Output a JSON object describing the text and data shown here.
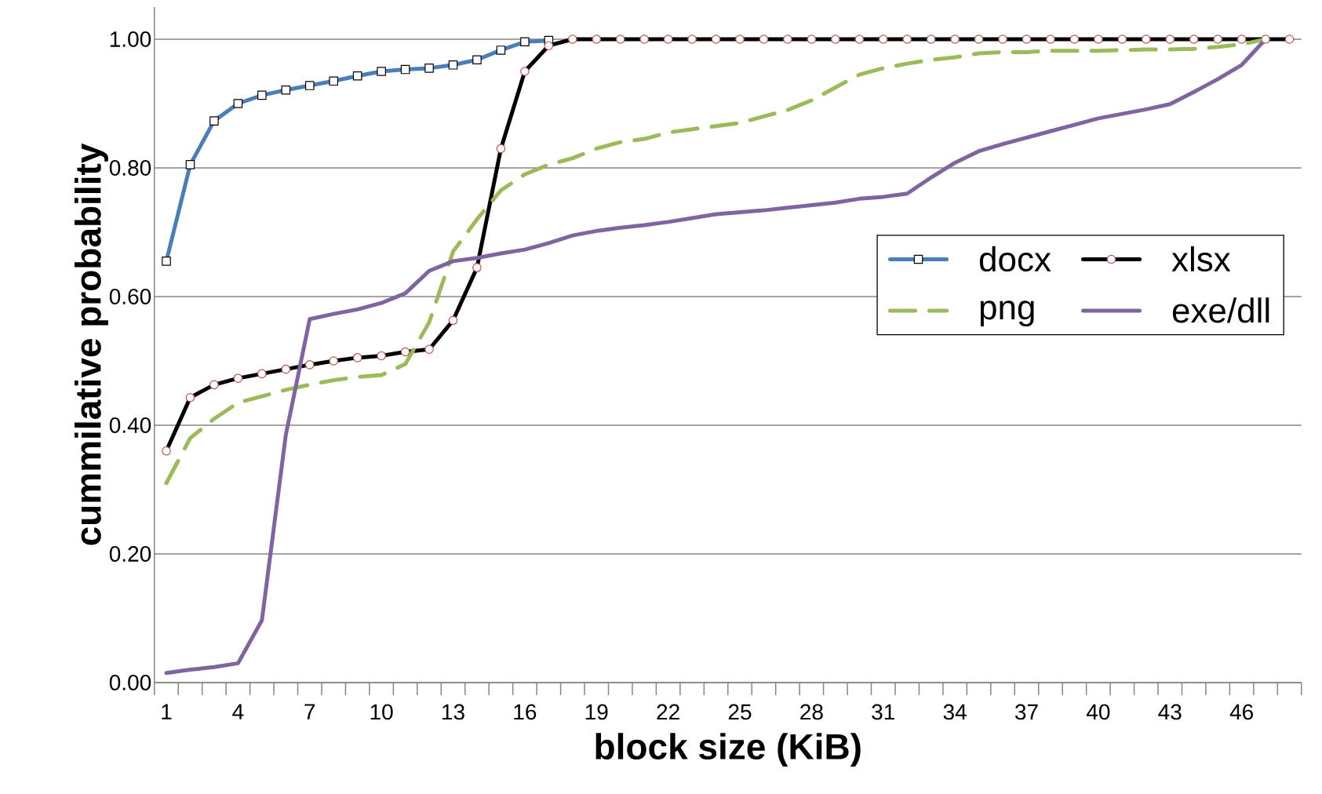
{
  "chart_data": {
    "type": "line",
    "xlabel": "block size (KiB)",
    "ylabel": "cummilative probability",
    "categories": [
      "1",
      null,
      null,
      "4",
      null,
      null,
      "7",
      null,
      null,
      "10",
      null,
      null,
      "13",
      null,
      null,
      "16",
      null,
      null,
      "19",
      null,
      null,
      "22",
      null,
      null,
      "25",
      null,
      null,
      "28",
      null,
      null,
      "31",
      null,
      null,
      "34",
      null,
      null,
      "37",
      null,
      null,
      "40",
      null,
      null,
      "43",
      null,
      null,
      "46",
      null,
      null
    ],
    "series": [
      {
        "name": "docx",
        "color": "#4a7ebb",
        "marker": "square",
        "line_style": "solid",
        "values": [
          0.655,
          0.805,
          0.873,
          0.9,
          0.913,
          0.921,
          0.928,
          0.935,
          0.943,
          0.95,
          0.953,
          0.955,
          0.96,
          0.968,
          0.983,
          0.996,
          0.998,
          null,
          null,
          null,
          null,
          null,
          null,
          null,
          null,
          null,
          null,
          null,
          null,
          null,
          null,
          null,
          null,
          null,
          null,
          null,
          null,
          null,
          null,
          null,
          null,
          null,
          null,
          null,
          null,
          null,
          null,
          null
        ]
      },
      {
        "name": "xlsx",
        "color": "#000000",
        "marker": "circle",
        "line_style": "solid",
        "values": [
          0.36,
          0.443,
          0.463,
          0.473,
          0.48,
          0.487,
          0.494,
          0.5,
          0.505,
          0.508,
          0.514,
          0.518,
          0.563,
          0.645,
          0.83,
          0.95,
          0.99,
          1,
          1,
          1,
          1,
          1,
          1,
          1,
          1,
          1,
          1,
          1,
          1,
          1,
          1,
          1,
          1,
          1,
          1,
          1,
          1,
          1,
          1,
          1,
          1,
          1,
          1,
          1,
          1,
          1,
          1,
          1
        ]
      },
      {
        "name": "png",
        "color": "#9bbb59",
        "marker": "none",
        "line_style": "dashed",
        "values": [
          0.31,
          0.38,
          0.41,
          0.435,
          0.445,
          0.455,
          0.463,
          0.47,
          0.475,
          0.478,
          0.495,
          0.56,
          0.67,
          0.72,
          0.765,
          0.79,
          0.805,
          0.815,
          0.83,
          0.84,
          0.845,
          0.855,
          0.86,
          0.865,
          0.87,
          0.88,
          0.89,
          0.905,
          0.925,
          0.945,
          0.955,
          0.962,
          0.968,
          0.972,
          0.978,
          0.98,
          0.98,
          0.982,
          0.982,
          0.982,
          0.983,
          0.984,
          0.984,
          0.985,
          0.988,
          0.992,
          1,
          null
        ]
      },
      {
        "name": "exe/dll",
        "color": "#8064a2",
        "marker": "none",
        "line_style": "solid",
        "values": [
          0.015,
          0.02,
          0.024,
          0.03,
          0.097,
          0.385,
          0.565,
          0.573,
          0.58,
          0.59,
          0.605,
          0.64,
          0.655,
          0.66,
          0.667,
          0.673,
          0.683,
          0.695,
          0.702,
          0.707,
          0.711,
          0.716,
          0.722,
          0.728,
          0.731,
          0.734,
          0.738,
          0.742,
          0.746,
          0.752,
          0.755,
          0.76,
          0.785,
          0.808,
          0.826,
          0.837,
          0.847,
          0.857,
          0.867,
          0.877,
          0.884,
          0.891,
          0.899,
          0.918,
          0.938,
          0.96,
          1,
          null
        ]
      }
    ],
    "ylim": [
      0,
      1.05
    ],
    "yticks": [
      {
        "value": 0,
        "label": "0.00"
      },
      {
        "value": 0.2,
        "label": "0.20"
      },
      {
        "value": 0.4,
        "label": "0.40"
      },
      {
        "value": 0.6,
        "label": "0.60"
      },
      {
        "value": 0.8,
        "label": "0.80"
      },
      {
        "value": 1,
        "label": "1.00"
      }
    ],
    "grid": "y",
    "legend": "right"
  }
}
